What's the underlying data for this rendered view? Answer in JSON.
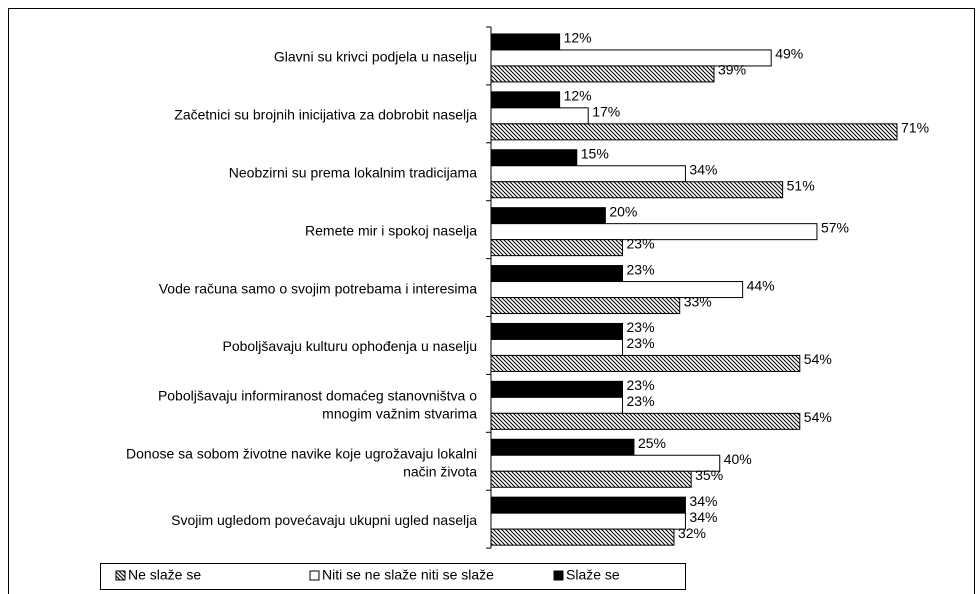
{
  "chart_data": {
    "type": "bar",
    "orientation": "horizontal",
    "categories": [
      "Glavni su krivci podjela u naselju",
      "Začetnici su brojnih inicijativa za dobrobit naselja",
      "Neobzirni su prema lokalnim tradicijama",
      "Remete mir i spokoj naselja",
      "Vode računa samo o svojim potrebama i interesima",
      "Poboljšavaju kulturu ophođenja u naselju",
      "Poboljšavaju informiranost domaćeg stanovništva o\nmnogim važnim stvarima",
      "Donose sa sobom životne navike koje ugrožavaju lokalni\nnačin života",
      "Svojim ugledom povećavaju ukupni ugled naselja"
    ],
    "series": [
      {
        "name": "Slaže se",
        "color": "#000000",
        "pattern": "solid",
        "values": [
          12,
          12,
          15,
          20,
          23,
          23,
          23,
          25,
          34
        ],
        "value_labels": [
          "12%",
          "12%",
          "15%",
          "20%",
          "23%",
          "23%",
          "23%",
          "25%",
          "34%"
        ]
      },
      {
        "name": "Niti se ne slaže niti se slaže",
        "color": "#ffffff",
        "pattern": "solid",
        "values": [
          49,
          17,
          34,
          57,
          44,
          23,
          23,
          40,
          34
        ],
        "value_labels": [
          "49%",
          "17%",
          "34%",
          "57%",
          "44%",
          "23%",
          "23%",
          "40%",
          "34%"
        ]
      },
      {
        "name": "Ne slaže se",
        "color": "#000000",
        "pattern": "diagonal",
        "values": [
          39,
          71,
          51,
          23,
          33,
          54,
          54,
          35,
          32
        ],
        "value_labels": [
          "39%",
          "71%",
          "51%",
          "23%",
          "33%",
          "54%",
          "54%",
          "35%",
          "32%"
        ]
      }
    ],
    "legend": "bottom"
  }
}
